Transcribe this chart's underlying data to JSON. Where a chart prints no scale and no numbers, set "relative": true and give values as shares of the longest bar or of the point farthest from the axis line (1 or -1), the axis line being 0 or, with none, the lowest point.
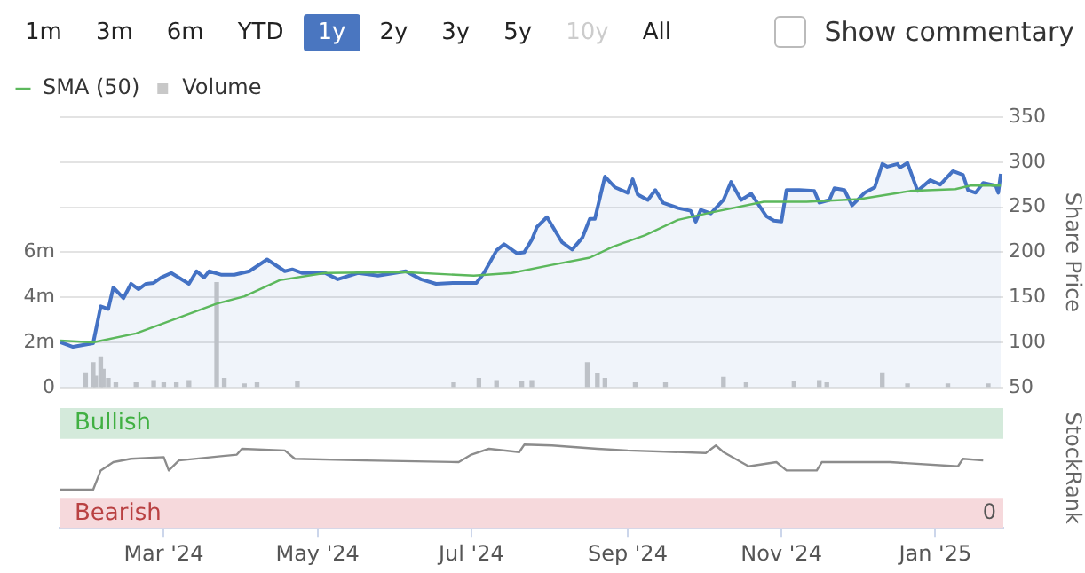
{
  "chart_data": [
    {
      "type": "line",
      "annotations": [
        "1m",
        "3m",
        "6m",
        "YTD",
        "1y",
        "2y",
        "3y",
        "5y",
        "10y",
        "All",
        "Show commentary"
      ],
      "y2label": "Share Price",
      "legend": "top left",
      "grid": "y",
      "marker": "none",
      "tick_labels": "y",
      "xlim": [
        "2024-01-20",
        "2025-01-28"
      ],
      "ylim": [
        0,
        12000000
      ],
      "yticks": [
        {
          "value": 0,
          "label": "0"
        },
        {
          "value": 2000000,
          "label": "2m"
        },
        {
          "value": 4000000,
          "label": "4m"
        },
        {
          "value": 6000000,
          "label": "6m"
        }
      ],
      "y2lim": [
        50,
        350
      ],
      "y2ticks": [
        50,
        100,
        150,
        200,
        250,
        300,
        350
      ],
      "series": [
        {
          "type": "bar",
          "name": "Volume",
          "color": "#c8c8c8",
          "axis": "y",
          "x": [
            "2024-01-30",
            "2024-02-02",
            "2024-02-03",
            "2024-02-05",
            "2024-02-06",
            "2024-02-08",
            "2024-02-11",
            "2024-02-19",
            "2024-02-26",
            "2024-03-01",
            "2024-03-06",
            "2024-03-11",
            "2024-03-22",
            "2024-03-25",
            "2024-04-02",
            "2024-04-07",
            "2024-04-23",
            "2024-05-25",
            "2024-06-24",
            "2024-07-04",
            "2024-07-11",
            "2024-07-21",
            "2024-07-25",
            "2024-08-16",
            "2024-08-20",
            "2024-08-23",
            "2024-09-04",
            "2024-09-16",
            "2024-10-09",
            "2024-10-18",
            "2024-11-06",
            "2024-11-16",
            "2024-11-19",
            "2024-12-11",
            "2024-12-21",
            "2025-01-06",
            "2025-01-22"
          ],
          "values": [
            650000,
            1100000,
            500000,
            1350000,
            800000,
            400000,
            200000,
            200000,
            300000,
            200000,
            200000,
            300000,
            4650000,
            400000,
            150000,
            200000,
            250000,
            null,
            200000,
            400000,
            300000,
            250000,
            300000,
            1100000,
            600000,
            400000,
            200000,
            200000,
            450000,
            200000,
            250000,
            300000,
            200000,
            650000,
            150000,
            150000,
            150000
          ]
        },
        {
          "type": "area",
          "color": "#4472c4",
          "axis": "y2",
          "x": [
            "2024-01-20",
            "2024-01-25",
            "2024-02-02",
            "2024-02-05",
            "2024-02-08",
            "2024-02-10",
            "2024-02-14",
            "2024-02-17",
            "2024-02-20",
            "2024-02-23",
            "2024-02-26",
            "2024-02-29",
            "2024-03-04",
            "2024-03-11",
            "2024-03-14",
            "2024-03-17",
            "2024-03-19",
            "2024-03-24",
            "2024-03-29",
            "2024-04-04",
            "2024-04-11",
            "2024-04-18",
            "2024-04-21",
            "2024-04-25",
            "2024-05-04",
            "2024-05-09",
            "2024-05-17",
            "2024-05-25",
            "2024-06-05",
            "2024-06-11",
            "2024-06-17",
            "2024-06-24",
            "2024-07-03",
            "2024-07-06",
            "2024-07-11",
            "2024-07-14",
            "2024-07-19",
            "2024-07-22",
            "2024-07-25",
            "2024-07-27",
            "2024-07-31",
            "2024-08-06",
            "2024-08-10",
            "2024-08-14",
            "2024-08-17",
            "2024-08-19",
            "2024-08-23",
            "2024-08-27",
            "2024-09-01",
            "2024-09-03",
            "2024-09-05",
            "2024-09-09",
            "2024-09-12",
            "2024-09-15",
            "2024-09-21",
            "2024-09-26",
            "2024-09-28",
            "2024-09-30",
            "2024-10-04",
            "2024-10-09",
            "2024-10-12",
            "2024-10-16",
            "2024-10-20",
            "2024-10-26",
            "2024-10-29",
            "2024-11-01",
            "2024-11-03",
            "2024-11-08",
            "2024-11-14",
            "2024-11-16",
            "2024-11-20",
            "2024-11-22",
            "2024-11-26",
            "2024-11-29",
            "2024-12-04",
            "2024-12-08",
            "2024-12-11",
            "2024-12-13",
            "2024-12-17",
            "2024-12-18",
            "2024-12-21",
            "2024-12-25",
            "2024-12-30",
            "2025-01-03",
            "2025-01-08",
            "2025-01-12",
            "2025-01-14",
            "2025-01-17",
            "2025-01-20",
            "2025-01-25",
            "2025-01-26",
            "2025-01-27"
          ],
          "values": [
            100,
            95,
            99,
            140,
            137,
            161,
            149,
            165,
            159,
            165,
            166,
            172,
            177,
            165,
            179,
            172,
            179,
            175,
            175,
            179,
            192,
            179,
            181,
            177,
            177,
            170,
            177,
            174,
            179,
            170,
            165,
            166,
            166,
            177,
            202,
            209,
            199,
            200,
            214,
            228,
            239,
            211,
            203,
            216,
            237,
            237,
            284,
            272,
            266,
            281,
            264,
            258,
            269,
            255,
            249,
            246,
            234,
            247,
            243,
            258,
            278,
            258,
            265,
            240,
            235,
            234,
            269,
            269,
            268,
            255,
            258,
            271,
            269,
            252,
            266,
            272,
            298,
            295,
            298,
            294,
            299,
            268,
            280,
            275,
            290,
            286,
            269,
            266,
            277,
            274,
            266,
            287
          ]
        },
        {
          "type": "line",
          "name": "SMA (50)",
          "color": "#5cb85c",
          "axis": "y2",
          "x": [
            "2024-01-20",
            "2024-02-02",
            "2024-02-19",
            "2024-03-22",
            "2024-04-02",
            "2024-04-16",
            "2024-05-04",
            "2024-06-04",
            "2024-07-02",
            "2024-07-17",
            "2024-08-02",
            "2024-08-17",
            "2024-08-26",
            "2024-09-08",
            "2024-09-21",
            "2024-10-04",
            "2024-10-25",
            "2024-11-11",
            "2024-12-02",
            "2024-12-22",
            "2025-01-09",
            "2025-01-15",
            "2025-01-27"
          ],
          "values": [
            102,
            100,
            110,
            143,
            151,
            169,
            177,
            178,
            174,
            177,
            186,
            194,
            206,
            219,
            236,
            244,
            256,
            256,
            259,
            268,
            270,
            274,
            274
          ]
        }
      ]
    },
    {
      "type": "line",
      "relative": true,
      "y2label": "StockRank",
      "annotations": [
        "0"
      ],
      "tick_labels": "x",
      "marker": "none",
      "xlim": [
        "2024-01-20",
        "2025-01-28"
      ],
      "xticks": [
        {
          "value": "2024-03-01",
          "label": "Mar '24"
        },
        {
          "value": "2024-05-01",
          "label": "May '24"
        },
        {
          "value": "2024-07-01",
          "label": "Jul '24"
        },
        {
          "value": "2024-09-01",
          "label": "Sep '24"
        },
        {
          "value": "2024-11-01",
          "label": "Nov '24"
        },
        {
          "value": "2025-01-01",
          "label": "Jan '25"
        }
      ],
      "bands": [
        {
          "axis": "y",
          "from": 1.07,
          "to": 1.44,
          "label": "Bullish",
          "color": "#d4eadb"
        },
        {
          "axis": "y",
          "from": 0,
          "to": 0.35,
          "label": "Bearish",
          "color": "#f6d9dc"
        }
      ],
      "x": [
        "2024-01-20",
        "2024-02-02",
        "2024-02-05",
        "2024-02-10",
        "2024-02-17",
        "2024-03-01",
        "2024-03-03",
        "2024-03-07",
        "2024-03-30",
        "2024-04-01",
        "2024-04-18",
        "2024-04-22",
        "2024-05-20",
        "2024-06-26",
        "2024-07-01",
        "2024-07-08",
        "2024-07-20",
        "2024-07-22",
        "2024-08-02",
        "2024-08-20",
        "2024-09-01",
        "2024-10-02",
        "2024-10-06",
        "2024-10-09",
        "2024-10-19",
        "2024-10-30",
        "2024-11-03",
        "2024-11-15",
        "2024-11-17",
        "2024-12-14",
        "2025-01-10",
        "2025-01-12",
        "2025-01-20"
      ],
      "series": [
        {
          "color": "#8c8c8c",
          "values": [
            0.46,
            0.46,
            0.69,
            0.79,
            0.83,
            0.85,
            0.69,
            0.81,
            0.88,
            0.95,
            0.93,
            0.83,
            0.81,
            0.79,
            0.88,
            0.95,
            0.91,
            1,
            0.99,
            0.95,
            0.93,
            0.9,
            0.99,
            0.91,
            0.74,
            0.79,
            0.69,
            0.69,
            0.79,
            0.79,
            0.74,
            0.83,
            0.81
          ]
        }
      ]
    }
  ]
}
